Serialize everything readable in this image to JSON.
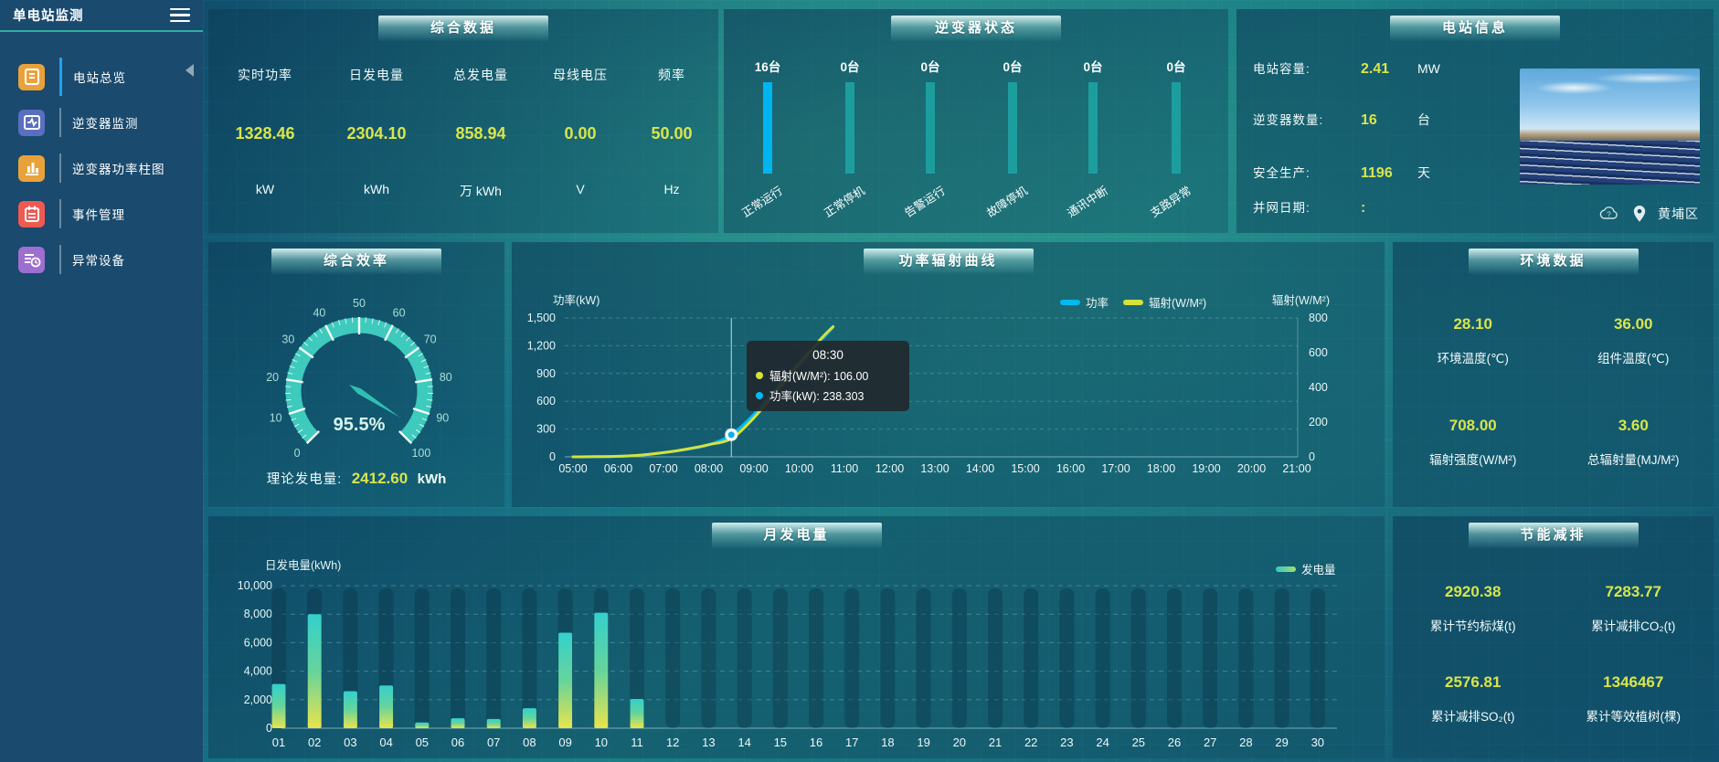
{
  "sidebar": {
    "title": "单电站监测",
    "items": [
      {
        "label": "电站总览",
        "icon": "overview-icon",
        "color": "#e9a23b",
        "active": true
      },
      {
        "label": "逆变器监测",
        "icon": "inverter-monitor-icon",
        "color": "#5a6fc0",
        "active": false
      },
      {
        "label": "逆变器功率柱图",
        "icon": "inverter-power-bar-icon",
        "color": "#e9a23b",
        "active": false
      },
      {
        "label": "事件管理",
        "icon": "event-management-icon",
        "color": "#ee5a52",
        "active": false
      },
      {
        "label": "异常设备",
        "icon": "abnormal-device-icon",
        "color": "#9d6fd0",
        "active": false
      }
    ]
  },
  "summary_panel": {
    "title": "综合数据",
    "metrics": [
      {
        "label": "实时功率",
        "value": "1328.46",
        "unit": "kW"
      },
      {
        "label": "日发电量",
        "value": "2304.10",
        "unit": "kWh"
      },
      {
        "label": "总发电量",
        "value": "858.94",
        "unit": "万 kWh"
      },
      {
        "label": "母线电压",
        "value": "0.00",
        "unit": "V"
      },
      {
        "label": "频率",
        "value": "50.00",
        "unit": "Hz"
      }
    ]
  },
  "inverter_panel": {
    "title": "逆变器状态",
    "highlight_color": "#00b4f0",
    "normal_color": "#1d9e9e",
    "statuses": [
      {
        "count": "16台",
        "label": "正常运行",
        "highlight": true
      },
      {
        "count": "0台",
        "label": "正常停机",
        "highlight": false
      },
      {
        "count": "0台",
        "label": "告警运行",
        "highlight": false
      },
      {
        "count": "0台",
        "label": "故障停机",
        "highlight": false
      },
      {
        "count": "0台",
        "label": "通讯中断",
        "highlight": false
      },
      {
        "count": "0台",
        "label": "支路异常",
        "highlight": false
      }
    ]
  },
  "station_panel": {
    "title": "电站信息",
    "rows": [
      {
        "label": "电站容量:",
        "value": "2.41",
        "unit": "MW"
      },
      {
        "label": "逆变器数量:",
        "value": "16",
        "unit": "台"
      },
      {
        "label": "安全生产:",
        "value": "1196",
        "unit": "天"
      },
      {
        "label": "并网日期:",
        "value": ":",
        "unit": ""
      }
    ],
    "location": "黄埔区"
  },
  "efficiency_panel": {
    "title": "综合效率",
    "theoretical_label": "理论发电量:",
    "theoretical_value": "2412.60",
    "theoretical_unit": "kWh"
  },
  "environment_panel": {
    "title": "环境数据",
    "metrics": [
      {
        "value": "28.10",
        "label": "环境温度(℃)"
      },
      {
        "value": "36.00",
        "label": "组件温度(℃)"
      },
      {
        "value": "708.00",
        "label": "辐射强度(W/M²)"
      },
      {
        "value": "3.60",
        "label": "总辐射量(MJ/M²)"
      }
    ]
  },
  "saving_panel": {
    "title": "节能减排",
    "metrics": [
      {
        "value": "2920.38",
        "label": "累计节约标煤(t)"
      },
      {
        "value": "7283.77",
        "label": "累计减排CO₂(t)"
      },
      {
        "value": "2576.81",
        "label": "累计减排SO₂(t)"
      },
      {
        "value": "1346467",
        "label": "累计等效植树(棵)"
      }
    ]
  },
  "chart_data": [
    {
      "type": "gauge",
      "title": "综合效率",
      "min": 0,
      "max": 100,
      "value": 95.5,
      "value_text": "95.5%",
      "tick_labels": [
        "0",
        "10",
        "20",
        "30",
        "40",
        "50",
        "60",
        "70",
        "80",
        "90",
        "100"
      ],
      "arc_color": "#3ecabc",
      "needle_color": "#2fc0b2"
    },
    {
      "type": "line",
      "title": "功率辐射曲线",
      "y_left": {
        "name": "功率(kW)",
        "max": 1500,
        "ticks": [
          [
            0,
            "0"
          ],
          [
            300,
            "300"
          ],
          [
            600,
            "600"
          ],
          [
            900,
            "900"
          ],
          [
            1200,
            "1,200"
          ],
          [
            1500,
            "1,500"
          ]
        ]
      },
      "y_right": {
        "name": "辐射(W/M²)",
        "max": 800,
        "ticks": [
          [
            0,
            "0"
          ],
          [
            200,
            "200"
          ],
          [
            400,
            "400"
          ],
          [
            600,
            "600"
          ],
          [
            800,
            "800"
          ]
        ]
      },
      "x_ticks": [
        [
          5,
          "05:00"
        ],
        [
          6,
          "06:00"
        ],
        [
          7,
          "07:00"
        ],
        [
          8,
          "08:00"
        ],
        [
          9,
          "09:00"
        ],
        [
          10,
          "10:00"
        ],
        [
          11,
          "11:00"
        ],
        [
          12,
          "12:00"
        ],
        [
          13,
          "13:00"
        ],
        [
          14,
          "14:00"
        ],
        [
          15,
          "15:00"
        ],
        [
          16,
          "16:00"
        ],
        [
          17,
          "17:00"
        ],
        [
          18,
          "18:00"
        ],
        [
          19,
          "19:00"
        ],
        [
          20,
          "20:00"
        ],
        [
          21,
          "21:00"
        ]
      ],
      "legend": [
        {
          "name": "功率",
          "color": "#00b9f2"
        },
        {
          "name": "辐射(W/M²)",
          "color": "#d4e23c"
        }
      ],
      "series": [
        {
          "name": "功率",
          "axis": "left",
          "color": "#00b9f2",
          "points": [
            [
              5,
              0
            ],
            [
              5.5,
              1
            ],
            [
              6,
              5
            ],
            [
              6.5,
              18
            ],
            [
              7,
              45
            ],
            [
              7.5,
              80
            ],
            [
              8,
              130
            ],
            [
              8.5,
              238.303
            ],
            [
              9,
              460
            ],
            [
              9.5,
              740
            ],
            [
              10,
              1020
            ],
            [
              10.5,
              1270
            ],
            [
              10.75,
              1400
            ]
          ]
        },
        {
          "name": "辐射(W/M²)",
          "axis": "right",
          "color": "#d4e23c",
          "points": [
            [
              5,
              0
            ],
            [
              5.5,
              1
            ],
            [
              6,
              3
            ],
            [
              6.5,
              10
            ],
            [
              7,
              24
            ],
            [
              7.5,
              44
            ],
            [
              8,
              70
            ],
            [
              8.5,
              106
            ],
            [
              9,
              225
            ],
            [
              9.5,
              380
            ],
            [
              10,
              535
            ],
            [
              10.5,
              685
            ],
            [
              10.75,
              750
            ]
          ]
        }
      ],
      "tooltip": {
        "time": "08:30",
        "marker_x": 8.5,
        "marker_value": 238.303,
        "rows": [
          {
            "name": "辐射(W/M²)",
            "value": "106.00",
            "color": "#d4e23c"
          },
          {
            "name": "功率(kW)",
            "value": "238.303",
            "color": "#00b9f2"
          }
        ]
      }
    },
    {
      "type": "bar",
      "title": "月发电量",
      "ylabel": "日发电量(kWh)",
      "ylim": [
        0,
        10000
      ],
      "yticks": [
        [
          0,
          "0"
        ],
        [
          2000,
          "2,000"
        ],
        [
          4000,
          "4,000"
        ],
        [
          6000,
          "6,000"
        ],
        [
          8000,
          "8,000"
        ],
        [
          10000,
          "10,000"
        ]
      ],
      "legend": "发电量",
      "categories": [
        "01",
        "02",
        "03",
        "04",
        "05",
        "06",
        "07",
        "08",
        "09",
        "10",
        "11",
        "12",
        "13",
        "14",
        "15",
        "16",
        "17",
        "18",
        "19",
        "20",
        "21",
        "22",
        "23",
        "24",
        "25",
        "26",
        "27",
        "28",
        "29",
        "30"
      ],
      "values": [
        3100,
        8000,
        2600,
        3000,
        400,
        700,
        650,
        1400,
        6700,
        8100,
        2050,
        0,
        0,
        0,
        0,
        0,
        0,
        0,
        0,
        0,
        0,
        0,
        0,
        0,
        0,
        0,
        0,
        0,
        0,
        0
      ],
      "bar_gradient": [
        "#34d0cd",
        "#66d49b",
        "#e9e44d"
      ]
    }
  ]
}
